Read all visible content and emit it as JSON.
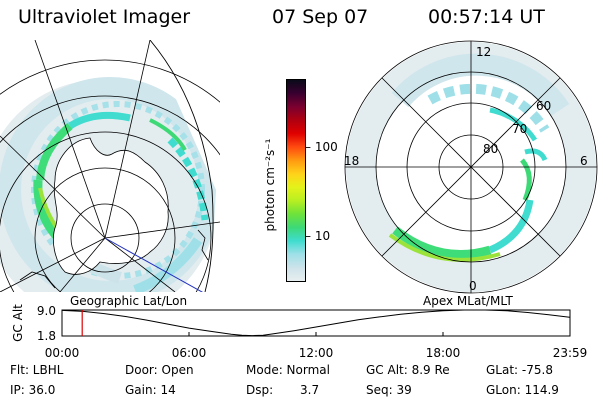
{
  "header": {
    "instrument": "Ultraviolet Imager",
    "date": "07 Sep 07",
    "time": "00:57:14 UT"
  },
  "left_map": {
    "label": "Geographic Lat/Lon"
  },
  "right_map": {
    "label": "Apex MLat/MLT",
    "lat_labels": [
      "80",
      "70",
      "60"
    ],
    "mlt_labels": {
      "top": "12",
      "bottom": "0",
      "left": "18",
      "right": "6"
    }
  },
  "colorbar": {
    "label": "photon cm⁻²s⁻¹",
    "ticks": [
      "100",
      "10"
    ],
    "colors": [
      "#e8eef0",
      "#cde3ea",
      "#9fe0e8",
      "#3fdccf",
      "#3dd977",
      "#6ee23a",
      "#b8ef22",
      "#e4f21a",
      "#ffd21a",
      "#ff9a10",
      "#ff4a10",
      "#e00000",
      "#b00010",
      "#7a0030",
      "#3a0030",
      "#0a0a1a"
    ]
  },
  "chart_data": {
    "type": "line",
    "title": "",
    "ylabel": "GC Alt",
    "yticks": [
      "9.0",
      "1.8"
    ],
    "ylim": [
      1.8,
      9.0
    ],
    "xticks": [
      "00:00",
      "06:00",
      "12:00",
      "18:00",
      "23:59"
    ],
    "xlim_hours": [
      0,
      24
    ],
    "current_time_hours": 0.954,
    "series": [
      {
        "x": [
          0,
          1,
          2,
          3,
          4,
          5,
          6,
          7,
          8,
          8.5,
          9,
          9.5,
          10,
          11,
          12,
          13,
          14,
          15,
          16,
          17,
          18,
          19,
          20,
          21,
          22,
          23,
          23.98
        ],
        "values": [
          8.9,
          8.6,
          8.0,
          7.2,
          6.2,
          5.1,
          4.0,
          3.1,
          2.3,
          2.0,
          1.9,
          2.0,
          2.4,
          3.3,
          4.3,
          5.3,
          6.3,
          7.1,
          7.8,
          8.4,
          8.8,
          9.0,
          9.0,
          8.8,
          8.3,
          7.7,
          7.0
        ]
      }
    ]
  },
  "footer": {
    "flt": "Flt: LBHL",
    "ip": "IP: 36.0",
    "door": "Door: Open",
    "gain": "Gain: 14",
    "mode": "Mode: Normal",
    "dsp_label": "Dsp:",
    "dsp_value": "3.7",
    "gc_alt": "GC Alt: 8.9 Re",
    "seq": "Seq: 39",
    "glat": "GLat: -75.8",
    "glon": "GLon: 114.9"
  }
}
